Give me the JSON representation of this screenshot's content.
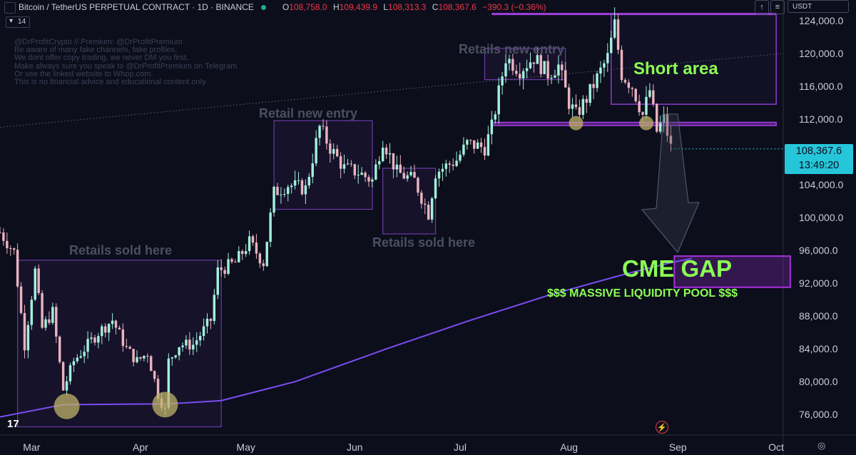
{
  "header": {
    "symbol": "Bitcoin / TetherUS PERPETUAL CONTRACT · 1D · BINANCE",
    "open_label": "O",
    "open": "108,758.0",
    "high_label": "H",
    "high": "109,439.9",
    "low_label": "L",
    "low": "108,313.3",
    "close_label": "C",
    "close": "108,367.6",
    "change": "−390.3 (−0.36%)",
    "volume_toggle": "14",
    "currency": "USDT"
  },
  "watermark": "@DrProfitCrypto // Premium: @DrProfitPremium\nBe aware of many fake channels, fake profiles.\nWe dont offer copy trading, we never DM you first.\nMake always sure you speak to @DrProfitPremium on Telegram\nOr use the linked website to Whop.com.\nThis is no financial advice and educational content only.",
  "price_tag": {
    "price": "108,367.6",
    "countdown": "13:49:20"
  },
  "annotations": {
    "retail_sold_1": "Retails sold here",
    "retail_new_1": "Retail new entry",
    "retail_sold_2": "Retails sold here",
    "retail_new_2": "Retails new entry",
    "short_area": "Short area",
    "cme_gap": "CME GAP",
    "liquidity": "$$$ MASSIVE LIQUIDITY POOL $$$"
  },
  "chart_data": {
    "type": "candlestick",
    "y_ticks": [
      "124,000.0",
      "120,000.0",
      "116,000.0",
      "112,000.0",
      "108,000.0",
      "104,000.0",
      "100,000.0",
      "96,000.0",
      "92,000.0",
      "88,000.0",
      "84,000.0",
      "80,000.0",
      "76,000.0"
    ],
    "ylim": [
      73500,
      126500
    ],
    "x_ticks": [
      "Mar",
      "Apr",
      "May",
      "Jun",
      "Jul",
      "Aug",
      "Sep",
      "Oct"
    ],
    "x_range": [
      "2025-02-20",
      "2025-10-01"
    ],
    "last_candle": {
      "open": 108758.0,
      "high": 109439.9,
      "low": 108313.3,
      "close": 108367.6
    },
    "close_path": [
      [
        "2025-02-20",
        98200
      ],
      [
        "2025-02-24",
        95800
      ],
      [
        "2025-02-27",
        84500
      ],
      [
        "2025-03-02",
        93500
      ],
      [
        "2025-03-04",
        86500
      ],
      [
        "2025-03-07",
        88500
      ],
      [
        "2025-03-10",
        79000
      ],
      [
        "2025-03-13",
        82500
      ],
      [
        "2025-03-16",
        84000
      ],
      [
        "2025-03-20",
        86000
      ],
      [
        "2025-03-24",
        87500
      ],
      [
        "2025-03-28",
        84000
      ],
      [
        "2025-03-31",
        82500
      ],
      [
        "2025-04-03",
        83500
      ],
      [
        "2025-04-06",
        78500
      ],
      [
        "2025-04-08",
        76500
      ],
      [
        "2025-04-09",
        82500
      ],
      [
        "2025-04-12",
        84500
      ],
      [
        "2025-04-16",
        84500
      ],
      [
        "2025-04-21",
        87500
      ],
      [
        "2025-04-23",
        93500
      ],
      [
        "2025-04-28",
        94500
      ],
      [
        "2025-05-02",
        97000
      ],
      [
        "2025-05-06",
        94500
      ],
      [
        "2025-05-09",
        103000
      ],
      [
        "2025-05-13",
        104000
      ],
      [
        "2025-05-18",
        103500
      ],
      [
        "2025-05-22",
        111000
      ],
      [
        "2025-05-25",
        108500
      ],
      [
        "2025-05-29",
        106000
      ],
      [
        "2025-06-02",
        105500
      ],
      [
        "2025-06-06",
        104500
      ],
      [
        "2025-06-09",
        109500
      ],
      [
        "2025-06-13",
        105500
      ],
      [
        "2025-06-18",
        104500
      ],
      [
        "2025-06-22",
        100500
      ],
      [
        "2025-06-24",
        105500
      ],
      [
        "2025-06-30",
        107000
      ],
      [
        "2025-07-03",
        109000
      ],
      [
        "2025-07-08",
        108500
      ],
      [
        "2025-07-10",
        111000
      ],
      [
        "2025-07-14",
        119500
      ],
      [
        "2025-07-18",
        118000
      ],
      [
        "2025-07-22",
        119500
      ],
      [
        "2025-07-26",
        117500
      ],
      [
        "2025-07-29",
        118500
      ],
      [
        "2025-08-01",
        114000
      ],
      [
        "2025-08-03",
        112500
      ],
      [
        "2025-08-06",
        114500
      ],
      [
        "2025-08-09",
        117000
      ],
      [
        "2025-08-12",
        119500
      ],
      [
        "2025-08-14",
        123500
      ],
      [
        "2025-08-16",
        117500
      ],
      [
        "2025-08-19",
        116000
      ],
      [
        "2025-08-22",
        112500
      ],
      [
        "2025-08-24",
        115500
      ],
      [
        "2025-08-26",
        110500
      ],
      [
        "2025-08-28",
        112000
      ],
      [
        "2025-08-30",
        108500
      ]
    ],
    "moving_average": [
      [
        "2025-02-20",
        75700
      ],
      [
        "2025-03-10",
        77200
      ],
      [
        "2025-04-09",
        77300
      ],
      [
        "2025-04-24",
        77700
      ],
      [
        "2025-05-15",
        80000
      ],
      [
        "2025-06-10",
        84000
      ],
      [
        "2025-07-04",
        87500
      ],
      [
        "2025-07-26",
        90500
      ],
      [
        "2025-08-16",
        93000
      ],
      [
        "2025-08-30",
        94500
      ],
      [
        "2025-09-05",
        95000
      ]
    ],
    "swing_lows": [
      [
        "2025-03-11",
        77000
      ],
      [
        "2025-04-08",
        77200
      ],
      [
        "2025-08-03",
        111500
      ],
      [
        "2025-08-23",
        111500
      ]
    ],
    "dotted_trendline": [
      [
        "2025-02-20",
        111000
      ],
      [
        "2025-10-01",
        120000
      ]
    ],
    "zones": [
      {
        "label": "retail_sold_1",
        "x0": "2025-02-25",
        "x1": "2025-04-24",
        "y0": 74500,
        "y1": 94800
      },
      {
        "label": "retail_new_1",
        "x0": "2025-05-09",
        "x1": "2025-06-06",
        "y0": 101000,
        "y1": 111800
      },
      {
        "label": "retail_sold_2",
        "x0": "2025-06-09",
        "x1": "2025-06-24",
        "y0": 98000,
        "y1": 106000
      },
      {
        "label": "retail_new_2",
        "x0": "2025-07-08",
        "x1": "2025-07-31",
        "y0": 116800,
        "y1": 120600
      },
      {
        "label": "short_area",
        "x0": "2025-08-13",
        "x1": "2025-09-29",
        "y0": 113800,
        "y1": 124800
      },
      {
        "label": "support_band",
        "x0": "2025-07-10",
        "x1": "2025-09-29",
        "y0": 111200,
        "y1": 111600
      },
      {
        "label": "cme_gap",
        "x0": "2025-08-31",
        "x1": "2025-10-03",
        "y0": 91500,
        "y1": 95300
      }
    ],
    "colors": {
      "up": "#a2f0dc",
      "down": "#e9b3bd",
      "zone": "#6c3aa6",
      "ma": "#7a4df0",
      "cme": "#9a2fd0",
      "highlight": "#bfb36a",
      "background": "#0c0e1c"
    }
  }
}
